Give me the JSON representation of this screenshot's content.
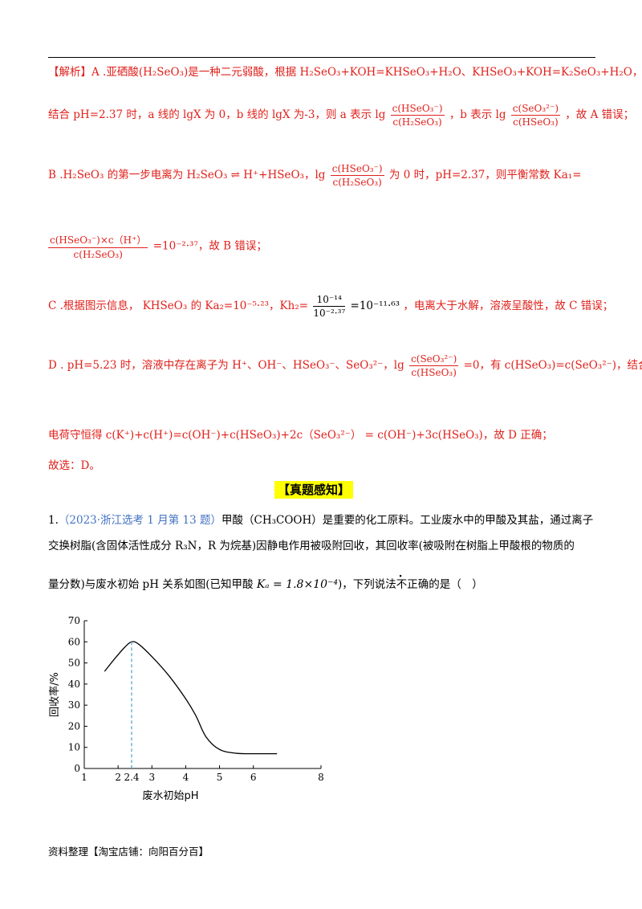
{
  "analysis": {
    "a_line": "【解析】A .亚硒酸(H₂SeO₃)是一种二元弱酸，根据 H₂SeO₃+KOH=KHSeO₃+H₂O、KHSeO₃+KOH=K₂SeO₃+H₂O，",
    "a2_pre": "结合 pH=2.37 时，a 线的 lgX 为 0，b 线的 lgX 为-3，则 a 表示 lg",
    "a2_f1_num": "c(HSeO₃⁻)",
    "a2_f1_den": "c(H₂SeO₃)",
    "a2_mid": "，b 表示 lg",
    "a2_f2_num": "c(SeO₃²⁻)",
    "a2_f2_den": "c(HSeO₃)",
    "a2_post": "，故 A 错误；",
    "b1_pre": "B .H₂SeO₃ 的第一步电离为 H₂SeO₃ ⇌ H⁺+HSeO₃，lg",
    "b1_f_num": "c(HSeO₃⁻)",
    "b1_f_den": "c(H₂SeO₃)",
    "b1_post": "为 0 时，pH=2.37，则平衡常数 Ka₁=",
    "b2_f_num": "c(HSeO₃⁻)×c（H⁺）",
    "b2_f_den": "c(H₂SeO₃)",
    "b2_post": "=10⁻²·³⁷，故 B 错误；",
    "c_pre": "C .根据图示信息， KHSeO₃ 的 Ka₂=10⁻⁵·²³，Kh₂=",
    "c_f_num": "10⁻¹⁴",
    "c_f_den": "10⁻²·³⁷",
    "c_mid": "=10⁻¹¹·⁶³",
    "c_post": "，电离大于水解，溶液呈酸性，故 C 错误；",
    "d1_pre": "D . pH=5.23 时，溶液中存在离子为 H⁺、OH⁻、HSeO₃⁻、SeO₃²⁻，lg",
    "d1_f_num": "c(SeO₃²⁻)",
    "d1_f_den": "c(HSeO₃)",
    "d1_post": "=0，有 c(HSeO₃)=c(SeO₃²⁻)，结合",
    "d2": "电荷守恒得 c(K⁺)+c(H⁺)=c(OH⁻)+c(HSeO₃)+2c（SeO₃²⁻） = c(OH⁻)+3c(HSeO₃)，故 D 正确；",
    "conclusion": "故选：D。"
  },
  "section_title": "【真题感知】",
  "question": {
    "number": "1.",
    "source": "（2023·浙江选考 1 月第 13 题）",
    "line1": "甲酸（CH₃COOH）是重要的化工原料。工业废水中的甲酸及其盐，通过离子",
    "line2": "交换树脂(含固体活性成分 R₃N，R 为烷基)因静电作用被吸附回收，其回收率(被吸附在树脂上甲酸根的物质的",
    "line3_pre": "量分数)与废水初始 pH 关系如图(已知甲酸",
    "ka": "Kₐ = 1.8×10⁻⁴",
    "line3_mid": ")，下列说法",
    "line3_dotted": "不正确",
    "line3_post": "的是（　）"
  },
  "chart_data": {
    "type": "line",
    "xlabel": "废水初始pH",
    "ylabel": "回收率/%",
    "xlim": [
      1,
      8
    ],
    "ylim": [
      0,
      70
    ],
    "x_ticks": [
      "1",
      "2",
      "2.4",
      "3",
      "4",
      "5",
      "6",
      "8"
    ],
    "x_tick_values": [
      1,
      2,
      2.4,
      3,
      4,
      5,
      6,
      8
    ],
    "y_ticks": [
      0,
      10,
      20,
      30,
      40,
      50,
      60,
      70
    ],
    "series": [
      {
        "x": [
          1.6,
          1.9,
          2.2,
          2.4,
          2.6,
          3.0,
          3.5,
          4.0,
          4.3,
          4.6,
          5.0,
          5.5,
          6.0,
          6.7
        ],
        "y": [
          46,
          52,
          57.5,
          60,
          59,
          53,
          44,
          33,
          25,
          15,
          9,
          7.2,
          7,
          7
        ]
      }
    ],
    "annotation": {
      "x": 2.4,
      "y": 60,
      "style": "dashed",
      "color": "#4a9fd4"
    },
    "grid": false
  },
  "footer": "资料整理【淘宝店铺：向阳百分百】"
}
